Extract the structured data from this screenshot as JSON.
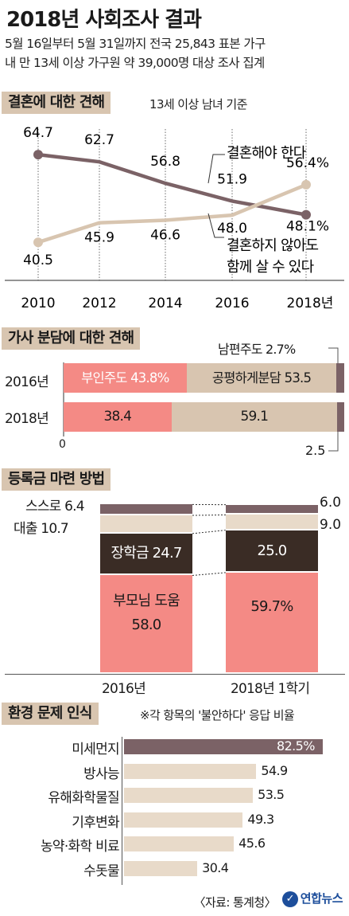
{
  "header": {
    "title": "2018년 사회조사 결과",
    "subtitle_line1": "5월 16일부터 5월 31일까지 전국 25,843 표본 가구",
    "subtitle_line2": "내 만 13세 이상 가구원 약 39,000명 대상 조사 집계"
  },
  "section1": {
    "title": "결혼에 대한 견해",
    "note": "13세 이상 남녀 기준"
  },
  "section2": {
    "title": "가사 분담에 대한 견해"
  },
  "section3": {
    "title": "등록금 마련 방법"
  },
  "section4": {
    "title": "환경 문제 인식",
    "note": "※각 항목의 '불안하다' 응답 비율"
  },
  "footer": {
    "source": "〈자료: 통계청〉",
    "logo": "연합뉴스"
  },
  "colors": {
    "dark_mauve": "#7b6266",
    "tan": "#d8c5b0",
    "salmon": "#f48a85",
    "dark_brown": "#3a2c25",
    "light_tan": "#e8dac9"
  },
  "chart_data": [
    {
      "type": "line",
      "x": [
        "2010",
        "2012",
        "2014",
        "2016",
        "2018년"
      ],
      "series": [
        {
          "name": "결혼해야 한다",
          "values": [
            64.7,
            62.7,
            56.8,
            51.9,
            48.1
          ],
          "labels": [
            "64.7",
            "62.7",
            "56.8",
            "51.9",
            "48.1%"
          ]
        },
        {
          "name": "결혼하지 않아도 함께 살 수 있다",
          "values": [
            40.5,
            45.9,
            46.6,
            48.0,
            56.4
          ],
          "labels": [
            "40.5",
            "45.9",
            "46.6",
            "48.0",
            "56.4%"
          ]
        }
      ],
      "legend": [
        "결혼해야 한다",
        "결혼하지 않아도",
        "함께 살 수 있다"
      ],
      "ylim": [
        30,
        70
      ]
    },
    {
      "type": "bar",
      "stacked": true,
      "orientation": "horizontal",
      "categories": [
        "2016년",
        "2018년"
      ],
      "series": [
        {
          "name": "부인주도",
          "values": [
            43.8,
            38.4
          ],
          "labels": [
            "부인주도 43.8%",
            "38.4"
          ]
        },
        {
          "name": "공평하게분담",
          "values": [
            53.5,
            59.1
          ],
          "labels": [
            "공평하게분담 53.5",
            "59.1"
          ]
        },
        {
          "name": "남편주도",
          "values": [
            2.7,
            2.5
          ],
          "labels": [
            "남편주도 2.7%",
            "2.5"
          ]
        }
      ],
      "axis_zero": "0"
    },
    {
      "type": "bar",
      "stacked": true,
      "orientation": "vertical",
      "categories": [
        "2016년",
        "2018년 1학기"
      ],
      "series": [
        {
          "name": "부모님 도움",
          "values": [
            58.0,
            59.7
          ],
          "labels": [
            "58.0",
            "59.7%"
          ]
        },
        {
          "name": "장학금",
          "values": [
            24.7,
            25.0
          ],
          "labels": [
            "24.7",
            "25.0"
          ]
        },
        {
          "name": "대출",
          "values": [
            10.7,
            9.0
          ],
          "labels": [
            "10.7",
            "9.0"
          ]
        },
        {
          "name": "스스로",
          "values": [
            6.4,
            6.0
          ],
          "labels": [
            "6.4",
            "6.0"
          ]
        }
      ],
      "label_text": {
        "parents": "부모님 도움",
        "scholarship": "장학금",
        "loan": "대출",
        "self": "스스로"
      }
    },
    {
      "type": "bar",
      "orientation": "horizontal",
      "categories": [
        "미세먼지",
        "방사능",
        "유해화학물질",
        "기후변화",
        "농약·화학 비료",
        "수돗물"
      ],
      "values": [
        82.5,
        54.9,
        53.5,
        49.3,
        45.6,
        30.4
      ],
      "labels": [
        "82.5%",
        "54.9",
        "53.5",
        "49.3",
        "45.6",
        "30.4"
      ]
    }
  ]
}
